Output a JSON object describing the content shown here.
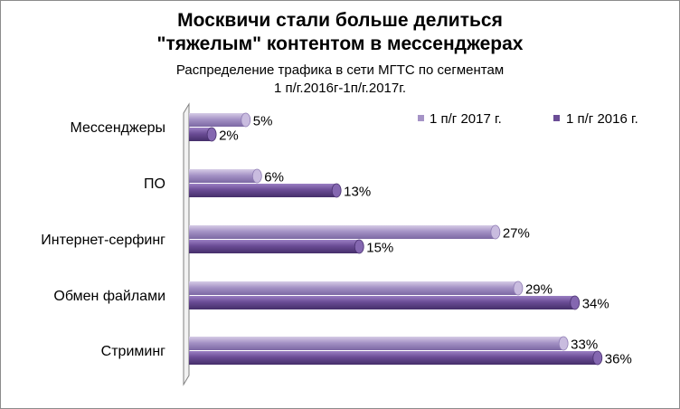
{
  "chart_data": {
    "type": "bar",
    "orientation": "horizontal",
    "title_line1": "Москвичи стали больше делиться",
    "title_line2": "\"тяжелым\" контентом в мессенджерах",
    "subtitle_line1": "Распределение трафика в сети МГТС по сегментам",
    "subtitle_line2": "1 п/г.2016г-1п/г.2017г.",
    "categories": [
      "Мессенджеры",
      "ПО",
      "Интернет-серфинг",
      "Обмен файлами",
      "Стриминг"
    ],
    "series": [
      {
        "name": "1 п/г 2017 г.",
        "values": [
          5,
          6,
          27,
          29,
          33
        ],
        "labels": [
          "5%",
          "6%",
          "27%",
          "29%",
          "33%"
        ],
        "color": "#a593c6"
      },
      {
        "name": "1 п/г 2016 г.",
        "values": [
          2,
          13,
          15,
          34,
          36
        ],
        "labels": [
          "2%",
          "13%",
          "15%",
          "34%",
          "36%"
        ],
        "color": "#6b4d96"
      }
    ],
    "xlim": [
      0,
      40
    ],
    "grid": false,
    "legend_position": "top-right",
    "style": "3d-cylinder"
  }
}
